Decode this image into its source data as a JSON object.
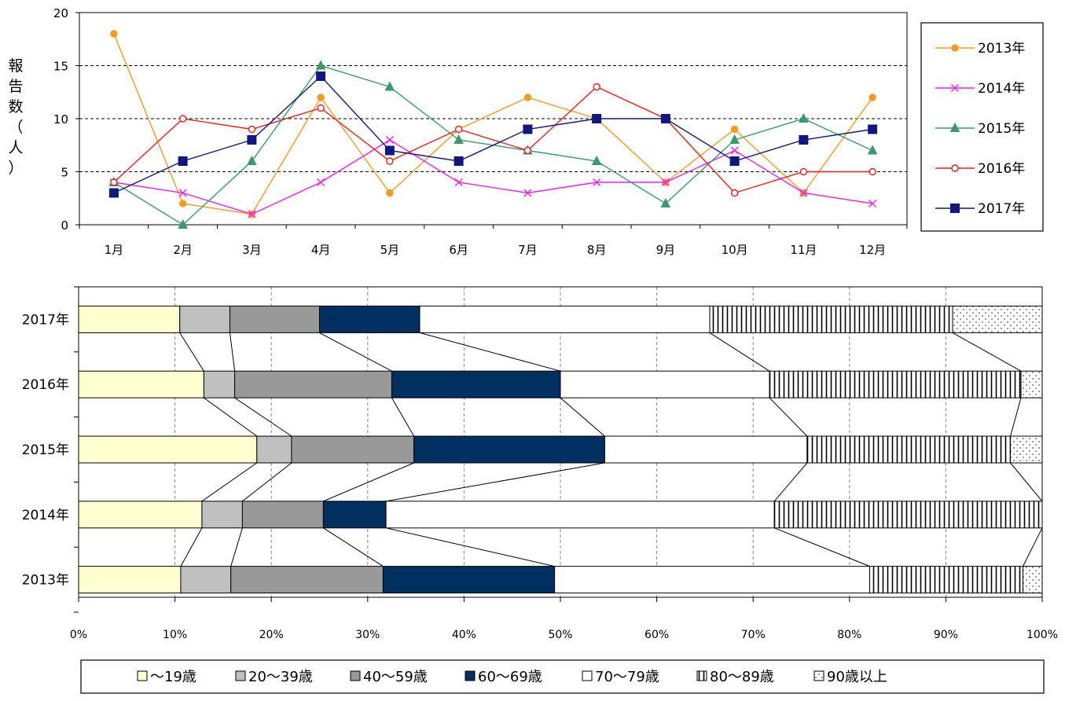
{
  "colors": {
    "s2013": "#F59A23",
    "s2014": "#F020F0",
    "s2015": "#3A9A6A",
    "s2016": "#E8201A",
    "s2017": "#101880",
    "age_u19": "#FFFFD0",
    "age_20_39": "#C0C0C0",
    "age_40_59": "#999999",
    "age_60_69": "#003060",
    "age_70_79": "#FFFFFF",
    "age_80_89": "#FFFFFF",
    "age_90": "#FFFFFF"
  },
  "chart_data": [
    {
      "type": "line",
      "ylabel": "報告数（人）",
      "ylim": [
        0,
        20
      ],
      "yticks": [
        "0",
        "5",
        "10",
        "15",
        "20"
      ],
      "grid": "dashed horizontal at 5, 10, 15",
      "legend_position": "right",
      "categories": [
        "1月",
        "2月",
        "3月",
        "4月",
        "5月",
        "6月",
        "7月",
        "8月",
        "9月",
        "10月",
        "11月",
        "12月"
      ],
      "series": [
        {
          "name": "2013年",
          "marker": "circle-filled",
          "color_key": "s2013",
          "values": [
            18,
            2,
            1,
            12,
            3,
            9,
            12,
            10,
            4,
            9,
            3,
            12
          ]
        },
        {
          "name": "2014年",
          "marker": "x",
          "color_key": "s2014",
          "values": [
            4,
            3,
            1,
            4,
            8,
            4,
            3,
            4,
            4,
            7,
            3,
            2
          ]
        },
        {
          "name": "2015年",
          "marker": "triangle",
          "color_key": "s2015",
          "values": [
            4,
            0,
            6,
            15,
            13,
            8,
            7,
            6,
            2,
            8,
            10,
            7
          ]
        },
        {
          "name": "2016年",
          "marker": "circle-open",
          "color_key": "s2016",
          "values": [
            4,
            10,
            9,
            11,
            6,
            9,
            7,
            13,
            10,
            3,
            5,
            5
          ]
        },
        {
          "name": "2017年",
          "marker": "square",
          "color_key": "s2017",
          "values": [
            3,
            6,
            8,
            14,
            7,
            6,
            9,
            10,
            10,
            6,
            8,
            9
          ]
        }
      ]
    },
    {
      "type": "bar",
      "orientation": "horizontal",
      "stacked": "percent",
      "xlim": [
        0,
        100
      ],
      "xticks": [
        "0%",
        "10%",
        "20%",
        "30%",
        "40%",
        "50%",
        "60%",
        "70%",
        "80%",
        "90%",
        "100%"
      ],
      "grid": "dashed vertical at each 10%",
      "legend_position": "bottom",
      "categories": [
        "2017年",
        "2016年",
        "2015年",
        "2014年",
        "2013年"
      ],
      "series": [
        {
          "name": "～19歳",
          "pattern": "solid",
          "color_key": "age_u19",
          "values": [
            10.5,
            13,
            18.5,
            12.8,
            10.6
          ]
        },
        {
          "name": "20～39歳",
          "pattern": "solid",
          "color_key": "age_20_39",
          "values": [
            5.2,
            3.2,
            3.6,
            4.2,
            5.2
          ]
        },
        {
          "name": "40～59歳",
          "pattern": "solid",
          "color_key": "age_40_59",
          "values": [
            9.3,
            16.3,
            12.7,
            8.4,
            15.8
          ]
        },
        {
          "name": "60～69歳",
          "pattern": "solid",
          "color_key": "age_60_69",
          "values": [
            10.4,
            17.5,
            19.8,
            6.5,
            17.8
          ]
        },
        {
          "name": "70～79歳",
          "pattern": "solid",
          "color_key": "age_70_79",
          "values": [
            30.1,
            21.7,
            21,
            40.3,
            32.7
          ]
        },
        {
          "name": "80～89歳",
          "pattern": "vertical-stripes",
          "color_key": "age_80_89",
          "values": [
            25.2,
            26.1,
            21.1,
            27.8,
            15.9
          ]
        },
        {
          "name": "90歳以上",
          "pattern": "dots",
          "color_key": "age_90",
          "values": [
            9.3,
            2.2,
            3.3,
            0,
            2
          ]
        }
      ]
    }
  ]
}
